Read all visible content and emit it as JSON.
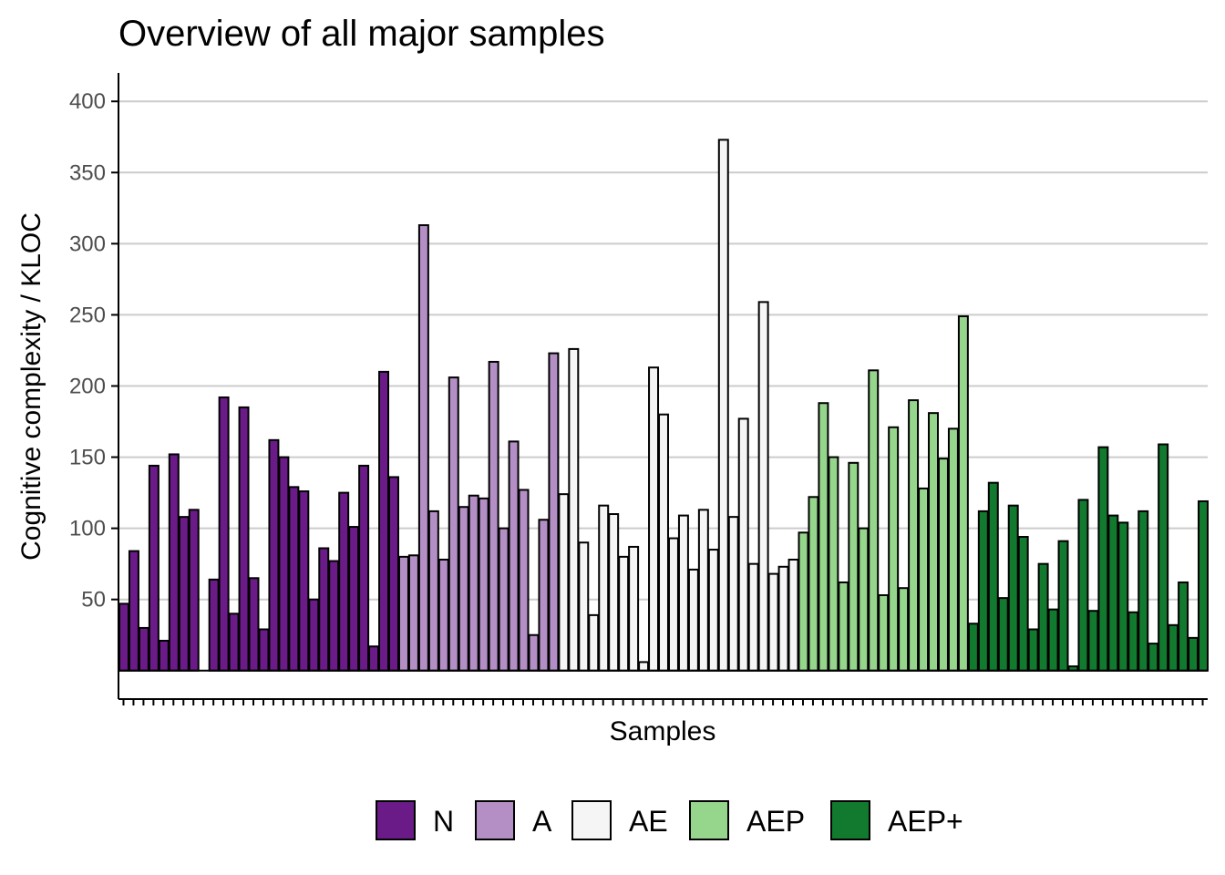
{
  "chart_data": {
    "type": "bar",
    "title": "Overview of all major samples",
    "xlabel": "Samples",
    "ylabel": "Cognitive complexity / KLOC",
    "ylim": [
      -20,
      420
    ],
    "yticks": [
      50,
      100,
      150,
      200,
      250,
      300,
      350,
      400
    ],
    "grid": "horizontal",
    "legend_position": "bottom",
    "series": [
      {
        "name": "N",
        "color": "#6a1b87",
        "values": [
          47,
          84,
          30,
          144,
          21,
          152,
          108,
          113,
          0,
          64,
          192,
          40,
          185,
          65,
          29,
          162,
          150,
          129,
          126,
          50,
          86,
          77,
          125,
          101,
          144,
          17,
          210,
          136
        ]
      },
      {
        "name": "A",
        "color": "#b48fc6",
        "values": [
          80,
          81,
          313,
          112,
          78,
          206,
          115,
          123,
          121,
          217,
          100,
          161,
          127,
          25,
          106,
          223
        ]
      },
      {
        "name": "AE",
        "color": "#f5f5f5",
        "values": [
          124,
          226,
          90,
          39,
          116,
          110,
          80,
          87,
          6,
          213,
          180,
          93,
          109,
          71,
          113,
          85,
          373,
          108,
          177,
          75,
          259,
          68,
          73,
          78
        ]
      },
      {
        "name": "AEP",
        "color": "#96d68c",
        "values": [
          97,
          122,
          188,
          150,
          62,
          146,
          100,
          211,
          53,
          171,
          58,
          190,
          128,
          181,
          149,
          170,
          249
        ]
      },
      {
        "name": "AEP+",
        "color": "#127a2e",
        "values": [
          33,
          112,
          132,
          51,
          116,
          94,
          29,
          75,
          43,
          91,
          3,
          120,
          42,
          157,
          109,
          104,
          41,
          112,
          19,
          159,
          32,
          62,
          23,
          119
        ]
      }
    ]
  }
}
